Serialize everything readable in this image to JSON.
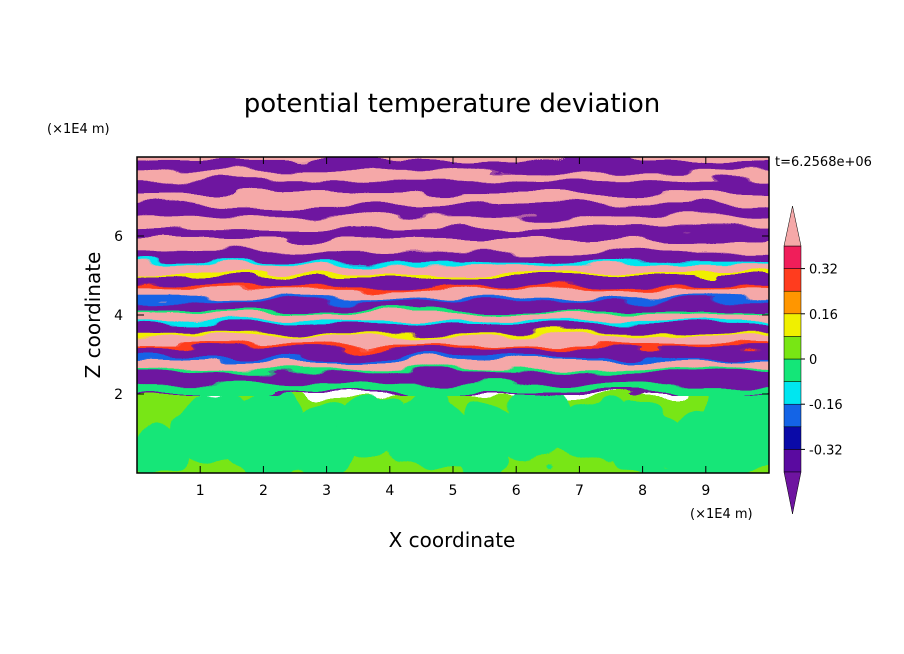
{
  "chart_data": {
    "type": "heatmap",
    "title": "potential temperature deviation",
    "xlabel": "X coordinate",
    "ylabel": "Z coordinate",
    "x_unit": "(×1E4 m)",
    "y_unit": "(×1E4 m)",
    "time_label": "t=6.2568e+06",
    "xlim": [
      0,
      10
    ],
    "ylim": [
      0,
      8
    ],
    "xticks": [
      1,
      2,
      3,
      4,
      5,
      6,
      7,
      8,
      9
    ],
    "yticks": [
      2,
      4,
      6
    ],
    "colorbar": {
      "levels": [
        -0.4,
        -0.32,
        -0.24,
        -0.16,
        -0.08,
        0,
        0.08,
        0.16,
        0.24,
        0.32,
        0.4
      ],
      "labels": [
        "-0.32",
        "-0.16",
        "0",
        "0.16",
        "0.32"
      ],
      "label_values": [
        -0.32,
        -0.16,
        0,
        0.16,
        0.32
      ],
      "colors": [
        "#5a0aa0",
        "#0a0aa8",
        "#1464e6",
        "#00e6f0",
        "#14e678",
        "#78e614",
        "#f0f000",
        "#ff9600",
        "#ff3c1e",
        "#f01e5a"
      ],
      "under_color": "#6e14a0",
      "over_color": "#f5a8a8"
    },
    "layers": {
      "uniform_layer_top_z": 2,
      "stratified_bands": [
        {
          "z": 7.85,
          "class": "over"
        },
        {
          "z": 7.6,
          "class": "under"
        },
        {
          "z": 7.35,
          "class": "over"
        },
        {
          "z": 7.1,
          "class": "under"
        },
        {
          "z": 6.8,
          "class": "over"
        },
        {
          "z": 6.5,
          "class": "under"
        },
        {
          "z": 6.2,
          "class": "over"
        },
        {
          "z": 5.9,
          "class": "under"
        },
        {
          "z": 5.6,
          "class": "over"
        },
        {
          "z": 5.3,
          "class": "under"
        },
        {
          "z": 5.0,
          "class": "over"
        },
        {
          "z": 4.7,
          "class": "under"
        },
        {
          "z": 4.4,
          "class": "over"
        },
        {
          "z": 4.1,
          "class": "under"
        },
        {
          "z": 3.8,
          "class": "over"
        },
        {
          "z": 3.5,
          "class": "under"
        },
        {
          "z": 3.2,
          "class": "over"
        },
        {
          "z": 2.9,
          "class": "under"
        },
        {
          "z": 2.6,
          "class": "over"
        },
        {
          "z": 2.3,
          "class": "under"
        }
      ]
    }
  }
}
